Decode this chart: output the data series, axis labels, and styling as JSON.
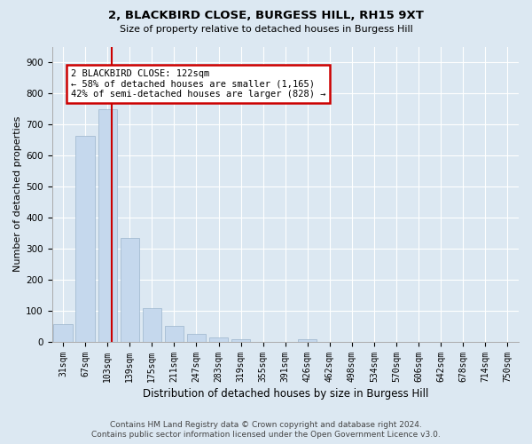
{
  "title": "2, BLACKBIRD CLOSE, BURGESS HILL, RH15 9XT",
  "subtitle": "Size of property relative to detached houses in Burgess Hill",
  "xlabel": "Distribution of detached houses by size in Burgess Hill",
  "ylabel": "Number of detached properties",
  "bar_color": "#c5d8ed",
  "bar_edge_color": "#9bb5cc",
  "categories": [
    "31sqm",
    "67sqm",
    "103sqm",
    "139sqm",
    "175sqm",
    "211sqm",
    "247sqm",
    "283sqm",
    "319sqm",
    "355sqm",
    "391sqm",
    "426sqm",
    "462sqm",
    "498sqm",
    "534sqm",
    "570sqm",
    "606sqm",
    "642sqm",
    "678sqm",
    "714sqm",
    "750sqm"
  ],
  "values": [
    57,
    663,
    750,
    335,
    108,
    53,
    25,
    15,
    10,
    0,
    0,
    10,
    0,
    0,
    0,
    0,
    0,
    0,
    0,
    0,
    0
  ],
  "ylim": [
    0,
    950
  ],
  "yticks": [
    0,
    100,
    200,
    300,
    400,
    500,
    600,
    700,
    800,
    900
  ],
  "vline_x": 2.2,
  "annotation_text": "2 BLACKBIRD CLOSE: 122sqm\n← 58% of detached houses are smaller (1,165)\n42% of semi-detached houses are larger (828) →",
  "annotation_box_facecolor": "#ffffff",
  "annotation_box_edgecolor": "#cc0000",
  "footer_line1": "Contains HM Land Registry data © Crown copyright and database right 2024.",
  "footer_line2": "Contains public sector information licensed under the Open Government Licence v3.0.",
  "bg_color": "#dce8f2",
  "grid_color": "#ffffff",
  "vline_color": "#cc0000",
  "title_fontsize": 9.5,
  "subtitle_fontsize": 8,
  "ylabel_fontsize": 8,
  "xlabel_fontsize": 8.5,
  "tick_fontsize": 7,
  "footer_fontsize": 6.5
}
